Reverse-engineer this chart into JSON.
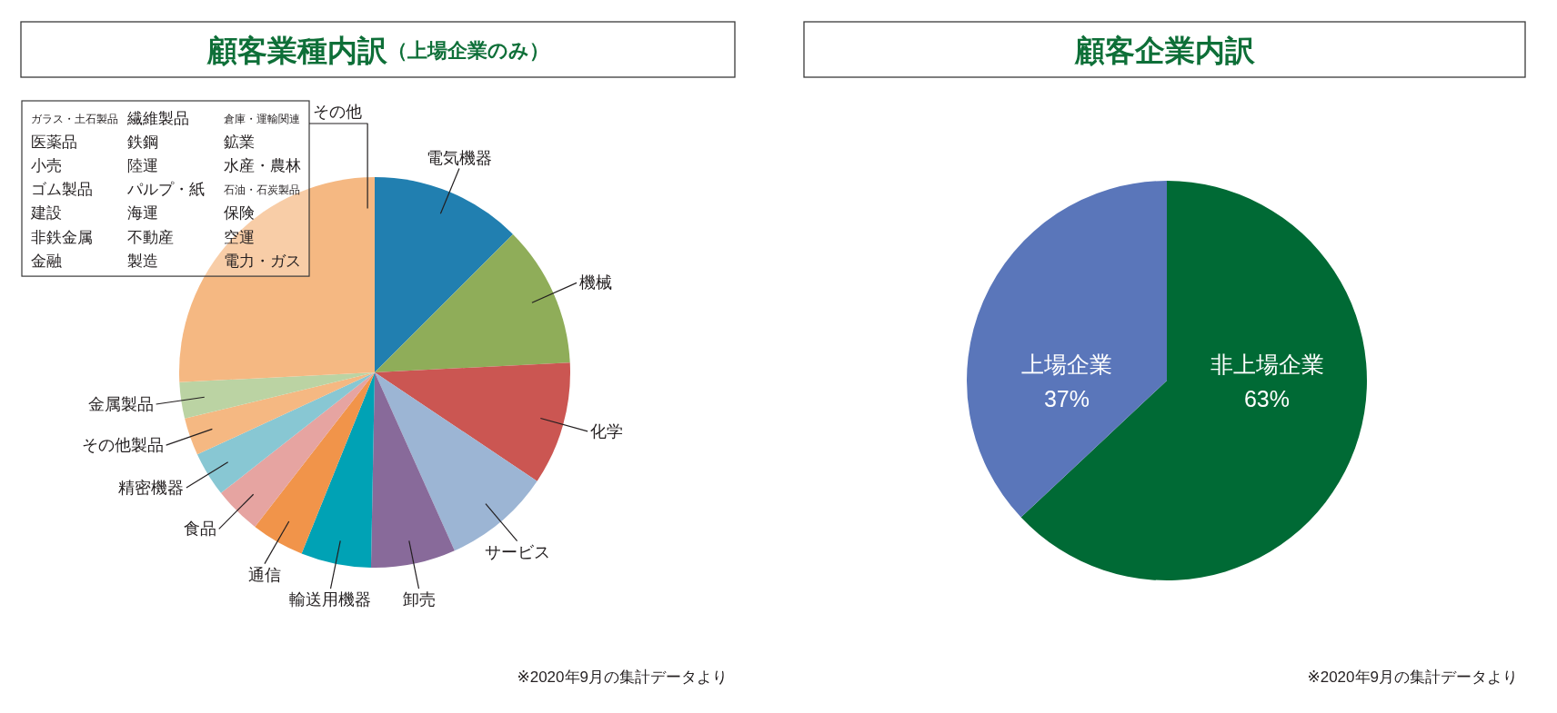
{
  "chart_data": [
    {
      "type": "pie",
      "title": "顧客業種内訳",
      "subtitle": "（上場企業のみ）",
      "categories": [
        "電気機器",
        "機械",
        "化学",
        "サービス",
        "卸売",
        "輸送用機器",
        "通信",
        "食品",
        "精密機器",
        "その他製品",
        "金属製品",
        "その他"
      ],
      "values": [
        12.5,
        11.7,
        10.2,
        8.9,
        7.0,
        5.8,
        4.4,
        3.9,
        3.7,
        3.1,
        3.0,
        25.8
      ],
      "colors": [
        "#217fb0",
        "#8fad59",
        "#cb5652",
        "#9cb5d4",
        "#886a9a",
        "#00a2b5",
        "#f1944a",
        "#e6a4a1",
        "#88c7d3",
        "#f5b882",
        "#bbd3a3",
        "#f5b882"
      ],
      "annotations": [
        "ガラス・土石製品",
        "繊維製品",
        "倉庫・運輸関連",
        "医薬品",
        "鉄鋼",
        "鉱業",
        "小売",
        "陸運",
        "水産・農林",
        "ゴム製品",
        "パルプ・紙",
        "石油・石炭製品",
        "建設",
        "海運",
        "保険",
        "非鉄金属",
        "不動産",
        "空運",
        "金融",
        "製造",
        "電力・ガス",
        "※2020年9月の集計データより"
      ]
    },
    {
      "type": "pie",
      "title": "顧客企業内訳",
      "categories": [
        "非上場企業",
        "上場企業"
      ],
      "values": [
        63,
        37
      ],
      "colors": [
        "#006a35",
        "#5a76ba"
      ],
      "value_labels": [
        "63%",
        "37%"
      ],
      "annotations": [
        "※2020年9月の集計データより"
      ]
    }
  ]
}
